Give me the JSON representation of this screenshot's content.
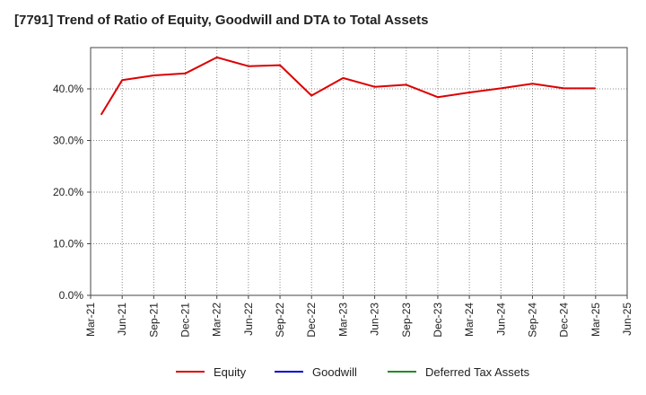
{
  "chart_data": {
    "type": "line",
    "title": "[7791]  Trend of Ratio of Equity, Goodwill and DTA to Total Assets",
    "xlabel": "",
    "ylabel": "",
    "ylim": [
      0,
      48
    ],
    "yticks": [
      "0.0%",
      "10.0%",
      "20.0%",
      "30.0%",
      "40.0%"
    ],
    "ytick_values": [
      0,
      10,
      20,
      30,
      40
    ],
    "xtick_labels": [
      "Mar-21",
      "Jun-21",
      "Sep-21",
      "Dec-21",
      "Mar-22",
      "Jun-22",
      "Sep-22",
      "Dec-22",
      "Mar-23",
      "Jun-23",
      "Sep-23",
      "Dec-23",
      "Mar-24",
      "Jun-24",
      "Sep-24",
      "Dec-24",
      "Mar-25",
      "Jun-25"
    ],
    "x_start": "2021-03",
    "x_end": "2025-06",
    "grid": true,
    "legend_position": "bottom",
    "series": [
      {
        "name": "Equity",
        "color": "#dd0000",
        "points": [
          {
            "x": "2021-04",
            "y": 35.0
          },
          {
            "x": "2021-06",
            "y": 41.7
          },
          {
            "x": "2021-09",
            "y": 42.6
          },
          {
            "x": "2021-12",
            "y": 43.0
          },
          {
            "x": "2022-03",
            "y": 46.1
          },
          {
            "x": "2022-06",
            "y": 44.4
          },
          {
            "x": "2022-09",
            "y": 44.6
          },
          {
            "x": "2022-12",
            "y": 38.7
          },
          {
            "x": "2023-03",
            "y": 42.1
          },
          {
            "x": "2023-06",
            "y": 40.4
          },
          {
            "x": "2023-09",
            "y": 40.8
          },
          {
            "x": "2023-12",
            "y": 38.4
          },
          {
            "x": "2024-03",
            "y": 39.3
          },
          {
            "x": "2024-06",
            "y": 40.1
          },
          {
            "x": "2024-09",
            "y": 41.0
          },
          {
            "x": "2024-12",
            "y": 40.1
          },
          {
            "x": "2025-03",
            "y": 40.1
          }
        ]
      },
      {
        "name": "Goodwill",
        "color": "#0000cc",
        "points": []
      },
      {
        "name": "Deferred Tax Assets",
        "color": "#228b22",
        "points": []
      }
    ]
  }
}
